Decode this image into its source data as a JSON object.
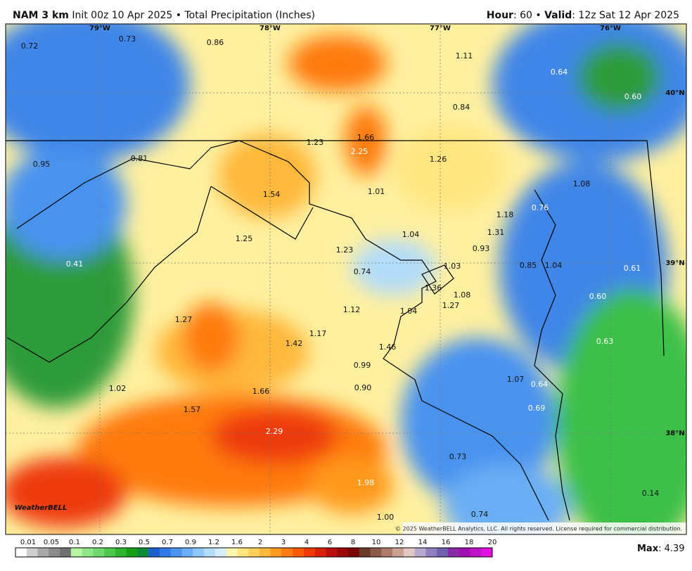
{
  "header": {
    "model": "NAM 3 km",
    "subtitle": "Init 00z 10 Apr 2025 • Total Precipitation (Inches)",
    "hour_label": "Hour",
    "hour": ": 60 • ",
    "valid_label": "Valid",
    "valid": ": 12z Sat 12 Apr 2025"
  },
  "map": {
    "coord_labels": [
      "79°W",
      "78°W",
      "77°W",
      "76°W",
      "40°N",
      "39°N",
      "38°N"
    ],
    "point_values": [
      "0.72",
      "0.73",
      "0.86",
      "1.11",
      "0.64",
      "0.60",
      "0.84",
      "1.23",
      "1.66",
      "2.25",
      "1.26",
      "0.95",
      "0.81",
      "1.01",
      "1.08",
      "1.54",
      "1.18",
      "0.76",
      "1.04",
      "1.31",
      "1.25",
      "1.23",
      "0.93",
      "0.41",
      "0.74",
      "1.03",
      "0.85",
      "1.04",
      "0.61",
      "1.36",
      "1.08",
      "0.60",
      "1.27",
      "1.12",
      "1.04",
      "1.27",
      "1.17",
      "1.42",
      "0.63",
      "1.46",
      "0.99",
      "1.07",
      "0.64",
      "1.02",
      "0.90",
      "1.66",
      "1.57",
      "0.69",
      "2.29",
      "0.73",
      "1.98",
      "0.14",
      "0.74",
      "1.00"
    ],
    "logo": "WeatherBELL",
    "copyright": "© 2025 WeatherBELL Analytics, LLC. All rights reserved. License required for commercial distribution."
  },
  "colorbar": {
    "labels": [
      "0.01",
      "0.05",
      "0.1",
      "0.2",
      "0.3",
      "0.5",
      "0.7",
      "0.9",
      "1.2",
      "1.6",
      "2",
      "3",
      "4",
      "6",
      "8",
      "10",
      "12",
      "14",
      "16",
      "18",
      "20"
    ],
    "colors": [
      "#ffffff",
      "#cfcfcf",
      "#a8a8a8",
      "#8a8a8a",
      "#707070",
      "#b5f5a0",
      "#8ee88a",
      "#6fd96e",
      "#4cc94c",
      "#2db52d",
      "#16a016",
      "#0b8a3a",
      "#1e5fd0",
      "#2f7ae6",
      "#4a93ef",
      "#6aaef5",
      "#8ec8f8",
      "#b2dcf9",
      "#d6edfa",
      "#fff7b0",
      "#ffe680",
      "#ffd15a",
      "#ffb83a",
      "#ff9a1e",
      "#ff7a10",
      "#ff5a0a",
      "#ee3a0a",
      "#d8200a",
      "#bb0f0f",
      "#9a0808",
      "#7a0505",
      "#6a3a2a",
      "#8a5a4a",
      "#b07a6a",
      "#caa090",
      "#e0c8c0",
      "#b8a8d0",
      "#9080c0",
      "#7060b0",
      "#8a2aa8",
      "#a010b0",
      "#c010c8",
      "#e010e0"
    ]
  },
  "max": {
    "label": "Max",
    "value": ": 4.39"
  }
}
